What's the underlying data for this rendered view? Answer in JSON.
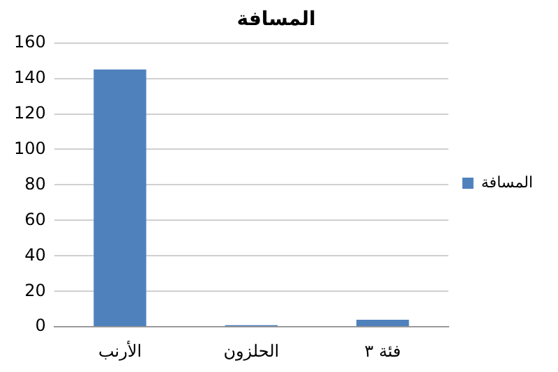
{
  "chart_data": {
    "type": "bar",
    "title": "المسافة",
    "categories": [
      "الأرنب",
      "الحلزون",
      "فئة ٣"
    ],
    "series": [
      {
        "name": "المسافة",
        "color": "#4f81bd",
        "values": [
          145,
          1,
          4
        ]
      }
    ],
    "ylim": [
      0,
      160
    ],
    "yticks": [
      0,
      20,
      40,
      60,
      80,
      100,
      120,
      140,
      160
    ],
    "grid": "y",
    "legend": "right"
  }
}
